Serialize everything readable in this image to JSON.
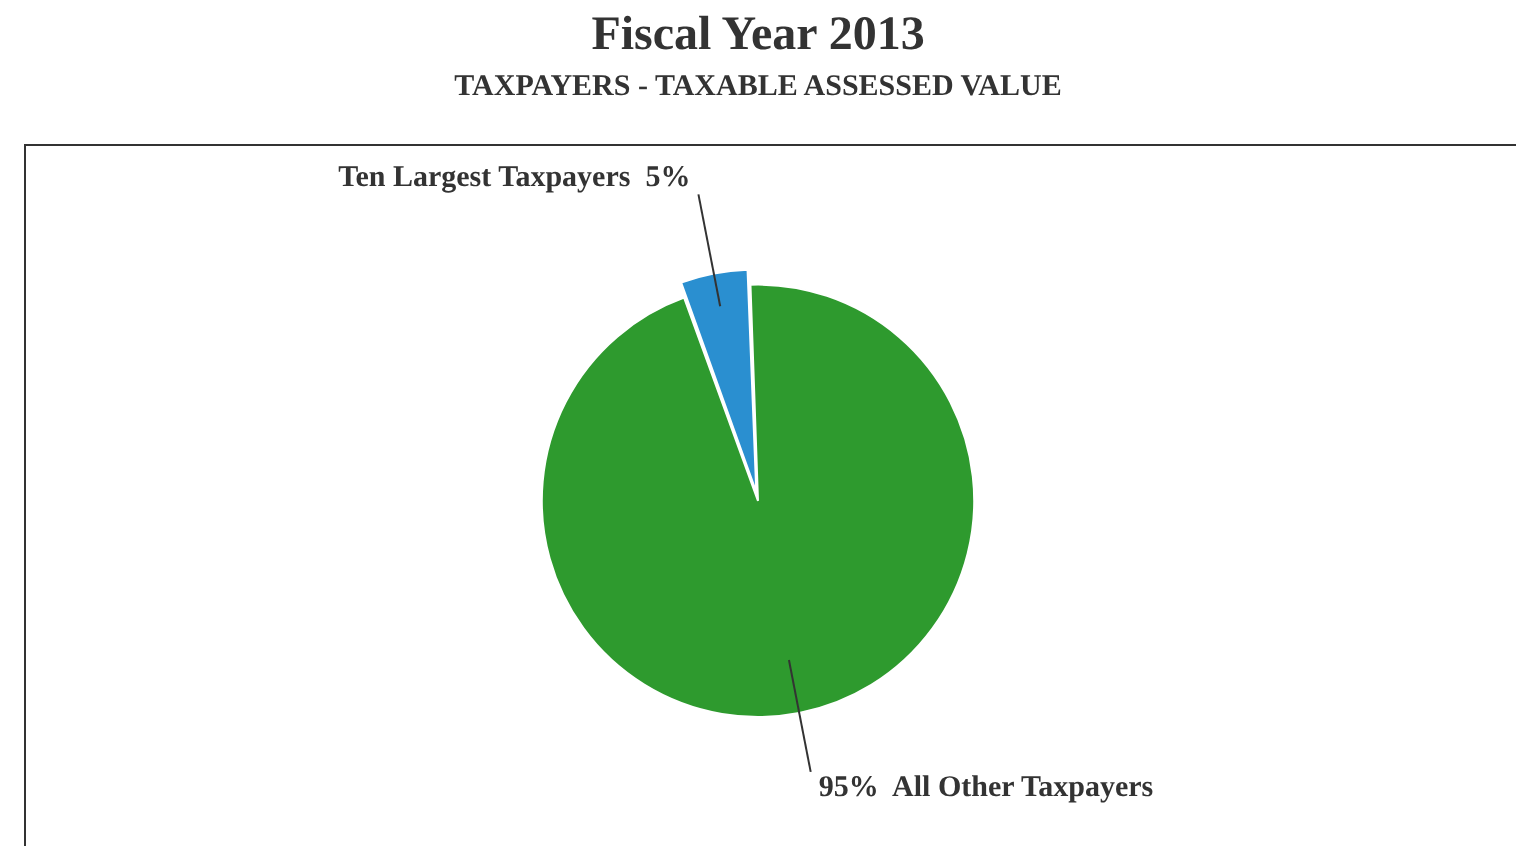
{
  "chart_data": {
    "type": "pie",
    "title": "Fiscal Year 2013",
    "subtitle": "TAXPAYERS - TAXABLE ASSESSED VALUE",
    "categories": [
      "Ten Largest Taxpayers",
      "All Other Taxpayers"
    ],
    "values": [
      5,
      95
    ],
    "colors": [
      "#2a8fd0",
      "#2e9a2e"
    ],
    "value_labels": [
      "5%",
      "95%"
    ],
    "legend": false
  }
}
